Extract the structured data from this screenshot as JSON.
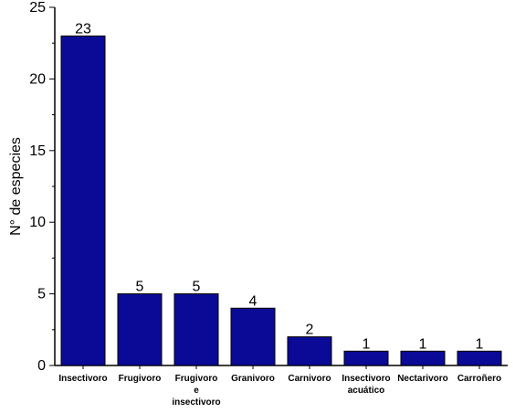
{
  "chart_data": {
    "type": "bar",
    "title": "",
    "xlabel": "",
    "ylabel": "N° de especies",
    "ylim": [
      0,
      25
    ],
    "yticks": [
      0,
      5,
      10,
      15,
      20,
      25
    ],
    "grid": false,
    "categories": [
      [
        "Insectivoro"
      ],
      [
        "Frugivoro"
      ],
      [
        "Frugivoro",
        "e",
        "insectivoro"
      ],
      [
        "Granivoro"
      ],
      [
        "Carnivoro"
      ],
      [
        "Insectivoro",
        "acuático"
      ],
      [
        "Nectarivoro"
      ],
      [
        "Carroñero"
      ]
    ],
    "values": [
      23,
      5,
      5,
      4,
      2,
      1,
      1,
      1
    ],
    "data_labels": [
      "23",
      "5",
      "5",
      "4",
      "2",
      "1",
      "1",
      "1"
    ],
    "bar_color": "#0a0a96"
  }
}
